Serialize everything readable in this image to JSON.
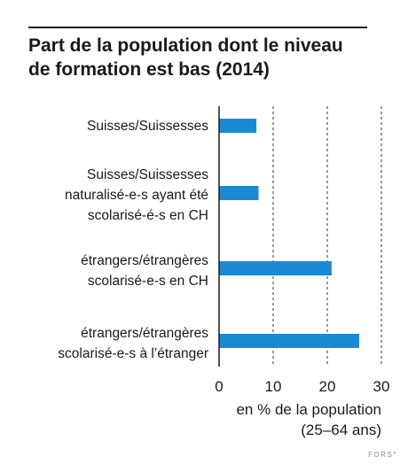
{
  "chart_data": {
    "type": "bar",
    "orientation": "horizontal",
    "title": "Part de la population dont le niveau de formation est bas (2014)",
    "title_lines": [
      "Part de la population dont le niveau",
      "de formation est bas (2014)"
    ],
    "categories": [
      [
        "Suisses/Suissesses"
      ],
      [
        "Suisses/Suissesses",
        "naturalisé-e-s ayant été",
        "scolarisé-é-s en CH"
      ],
      [
        "étrangers/étrangères",
        "scolarisé-e-s en CH"
      ],
      [
        "étrangers/étrangères",
        "scolarisé-e-s à l’étranger"
      ]
    ],
    "values": [
      6.9,
      7.3,
      20.8,
      25.9
    ],
    "xlim": [
      0,
      30
    ],
    "xticks": [
      0,
      10,
      20,
      30
    ],
    "xtick_labels": [
      "0",
      "10",
      "20",
      "30"
    ],
    "xlabel_lines": [
      "en % de la population",
      "(25–64 ans)"
    ],
    "grid": "vertical dashed",
    "bar_color": "#1a8ad4"
  },
  "source_logo": "FORS"
}
